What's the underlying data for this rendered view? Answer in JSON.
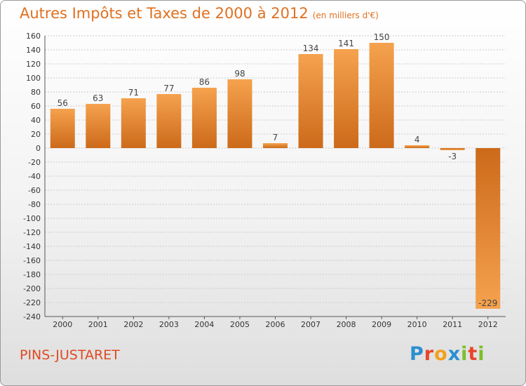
{
  "title": {
    "main": "Autres Impôts et Taxes de 2000 à 2012",
    "unit": "(en milliers d'€)"
  },
  "commune": "PINS-JUSTARET",
  "logo": {
    "text": "Proxiti",
    "letters": [
      {
        "char": "P",
        "color": "#2a8fd0"
      },
      {
        "char": "r",
        "color": "#e8462a"
      },
      {
        "char": "o",
        "color": "#f2a01e"
      },
      {
        "char": "x",
        "color": "#2a8fd0"
      },
      {
        "char": "i",
        "color": "#7bbf2a"
      },
      {
        "char": "t",
        "color": "#e8462a"
      },
      {
        "char": "i",
        "color": "#7bbf2a"
      }
    ]
  },
  "colors": {
    "bar_dark": "#cc6a1a",
    "bar_light": "#f5a24e",
    "grid": "#cccccc",
    "title": "#e07020"
  },
  "chart_data": {
    "type": "bar",
    "title": "Autres Impôts et Taxes de 2000 à 2012",
    "subtitle": "(en milliers d'€)",
    "categories": [
      "2000",
      "2001",
      "2002",
      "2003",
      "2004",
      "2005",
      "2006",
      "2007",
      "2008",
      "2009",
      "2010",
      "2011",
      "2012"
    ],
    "values": [
      56,
      63,
      71,
      77,
      86,
      98,
      7,
      134,
      141,
      150,
      4,
      -3,
      -229
    ],
    "labels": [
      "56",
      "63",
      "71",
      "77",
      "86",
      "98",
      "7",
      "134",
      "141",
      "150",
      "4",
      "-3",
      "-229"
    ],
    "ylim": [
      -240,
      160
    ],
    "yticks": [
      160,
      140,
      120,
      100,
      80,
      60,
      40,
      20,
      0,
      -20,
      -40,
      -60,
      -80,
      -100,
      -120,
      -140,
      -160,
      -180,
      -200,
      -220,
      -240
    ],
    "grid": true,
    "xlabel": "",
    "ylabel": ""
  }
}
